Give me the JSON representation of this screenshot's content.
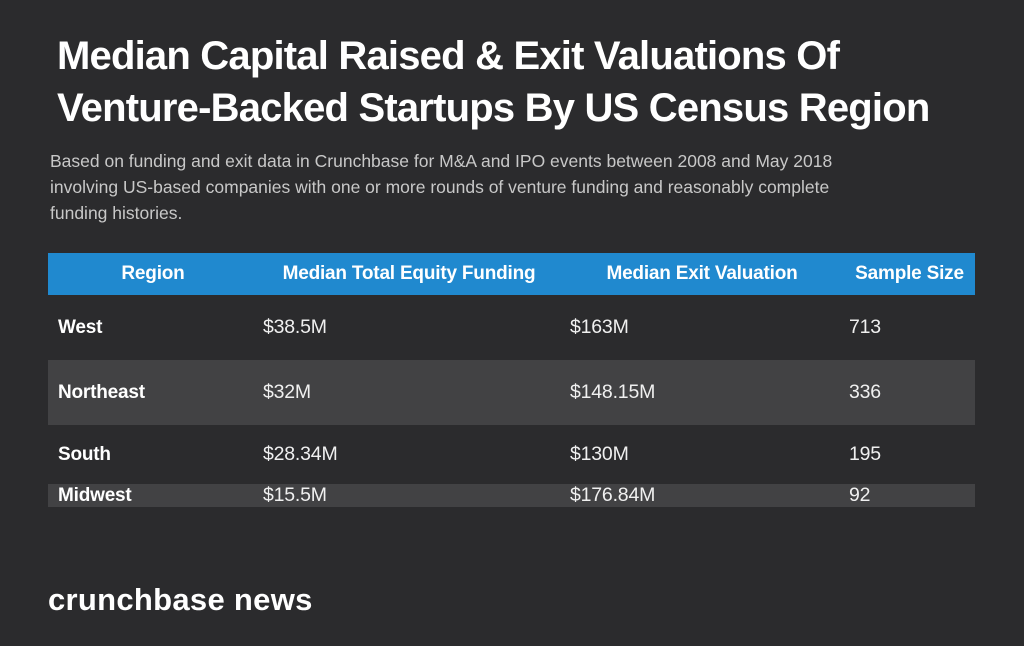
{
  "page": {
    "background": "#2b2b2d",
    "accent_color": "#2089cf",
    "alt_row_color": "#424244",
    "subtitle_color": "#c8c8c8"
  },
  "header": {
    "title_lines": [
      "Median Capital Raised & Exit Valuations Of",
      "Venture-Backed Startups By US Census Region"
    ],
    "subtitle_lines": [
      "Based on funding and exit data in Crunchbase for M&A and IPO events between 2008 and May 2018",
      "involving US-based companies with one or more rounds of venture funding and reasonably complete",
      "funding histories."
    ]
  },
  "table": {
    "columns": [
      "Region",
      "Median Total Equity Funding",
      "Median Exit Valuation",
      "Sample Size"
    ],
    "rows": [
      {
        "region": "West",
        "funding": "$38.5M",
        "exit": "$163M",
        "sample": "713"
      },
      {
        "region": "Northeast",
        "funding": "$32M",
        "exit": "$148.15M",
        "sample": "336"
      },
      {
        "region": "South",
        "funding": "$28.34M",
        "exit": "$130M",
        "sample": "195"
      },
      {
        "region": "Midwest",
        "funding": "$15.5M",
        "exit": "$176.84M",
        "sample": "92"
      }
    ]
  },
  "footer": {
    "brand_text": "crunchbase news"
  },
  "chart_data": {
    "type": "table",
    "title": "Median Capital Raised & Exit Valuations Of Venture-Backed Startups By US Census Region",
    "subtitle": "Based on funding and exit data in Crunchbase for M&A and IPO events between 2008 and May 2018 involving US-based companies with one or more rounds of venture funding and reasonably complete funding histories.",
    "columns": [
      "Region",
      "Median Total Equity Funding",
      "Median Exit Valuation",
      "Sample Size"
    ],
    "categories": [
      "West",
      "Northeast",
      "South",
      "Midwest"
    ],
    "series": [
      {
        "name": "Median Total Equity Funding ($M)",
        "values": [
          38.5,
          32,
          28.34,
          15.5
        ]
      },
      {
        "name": "Median Exit Valuation ($M)",
        "values": [
          163,
          148.15,
          130,
          176.84
        ]
      },
      {
        "name": "Sample Size",
        "values": [
          713,
          336,
          195,
          92
        ]
      }
    ],
    "source": "crunchbase news"
  }
}
